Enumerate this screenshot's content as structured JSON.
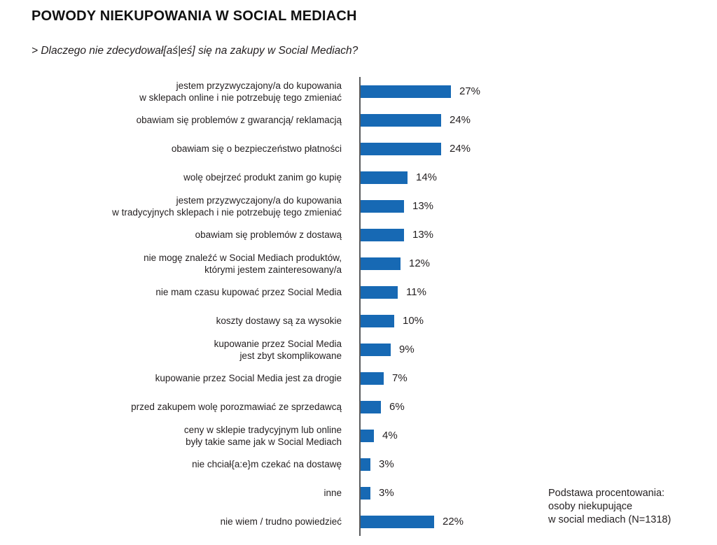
{
  "header": {
    "title": "POWODY NIEKUPOWANIA W SOCIAL MEDIACH",
    "question": "> Dlaczego nie zdecydował[aś|eś] się na zakupy w Social Mediach?"
  },
  "chart_data": {
    "type": "bar",
    "orientation": "horizontal",
    "title": "POWODY NIEKUPOWANIA W SOCIAL MEDIACH",
    "subtitle": "> Dlaczego nie zdecydował[aś|eś] się na zakupy w Social Mediach?",
    "unit": "%",
    "value_suffix": "%",
    "xlim": [
      0,
      30
    ],
    "grid": false,
    "legend": "none",
    "bar_color": "#1769b4",
    "axis_color": "#595a5c",
    "categories": [
      "jestem przyzwyczajony/a do kupowania\nw sklepach online i nie potrzebuję tego zmieniać",
      "obawiam się problemów z gwarancją/ reklamacją",
      "obawiam się o bezpieczeństwo płatności",
      "wolę obejrzeć produkt zanim go kupię",
      "jestem przyzwyczajony/a do kupowania\nw tradycyjnych sklepach i nie potrzebuję tego zmieniać",
      "obawiam się problemów z dostawą",
      "nie mogę znaleźć w Social Mediach produktów,\nktórymi jestem zainteresowany/a",
      "nie mam czasu kupować przez Social Media",
      "koszty dostawy są za wysokie",
      "kupowanie przez Social Media\njest zbyt skomplikowane",
      "kupowanie przez Social Media jest za drogie",
      "przed zakupem wolę porozmawiać ze sprzedawcą",
      "ceny w sklepie tradycyjnym lub online\nbyły takie same jak w Social Mediach",
      "nie chciał{a:e}m czekać na dostawę",
      "inne",
      "nie wiem / trudno powiedzieć"
    ],
    "values": [
      27,
      24,
      24,
      14,
      13,
      13,
      12,
      11,
      10,
      9,
      7,
      6,
      4,
      3,
      3,
      22
    ]
  },
  "footnote": {
    "lines": [
      "Podstawa procentowania:",
      "osoby niekupujące",
      "w social mediach (N=1318)"
    ]
  }
}
